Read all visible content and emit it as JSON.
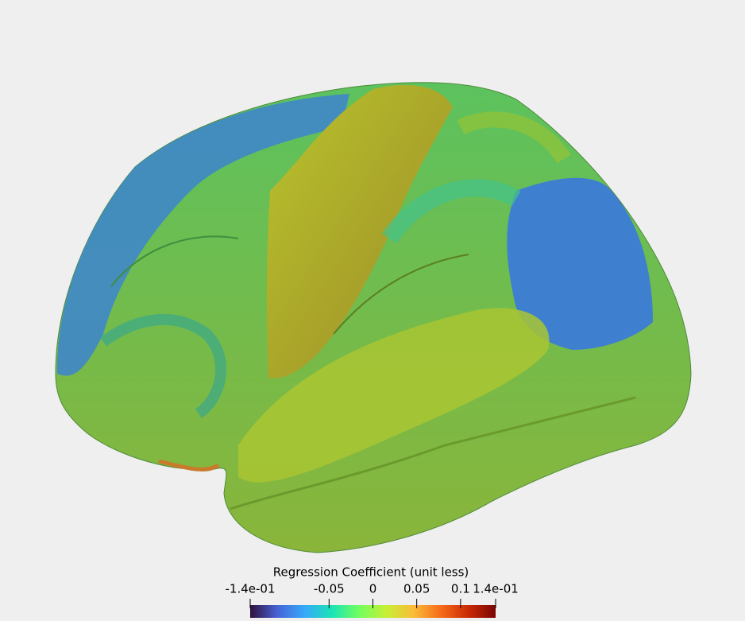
{
  "chart_data": {
    "type": "colorbar",
    "title": "Regression Coefficient (unit less)",
    "xlim": [
      -0.14,
      0.14
    ],
    "xticks": [
      {
        "value": -0.14,
        "label": "-1.4e-01"
      },
      -0.05,
      0,
      0.05,
      0.1,
      {
        "value": 0.14,
        "label": "1.4e-01"
      }
    ],
    "colors": [
      "#30123b",
      "#4662d7",
      "#36aaf9",
      "#1ae4b6",
      "#72fe5e",
      "#c7ef34",
      "#fabb39",
      "#f66b19",
      "#ca2a04",
      "#7a0403"
    ]
  }
}
